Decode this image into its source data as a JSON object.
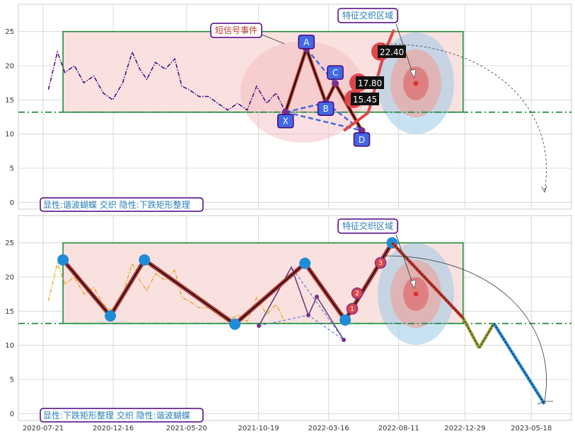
{
  "colors": {
    "grid": "#d0d0d0",
    "rect_fill": "#f9e1df",
    "rect_stroke": "#1e8c3a",
    "support": "#1e8c3a",
    "price_top": "#4b0082",
    "price_bottom": "#e8a317",
    "xabcd_pt": "#4169e1",
    "zigzag": "#b83b3b",
    "zigzag_dot": "#1f8dd6",
    "callout_edge": "#4b0082"
  },
  "chart_data": [
    {
      "type": "line",
      "panel": "top",
      "xlim": [
        "2020-07-21",
        "2023-07-15"
      ],
      "ylim": [
        -1,
        29
      ],
      "yticks": [
        0,
        5,
        10,
        15,
        20,
        25
      ],
      "grid": true,
      "series": [
        {
          "style": "dash-dot",
          "x": [
            "2020-08-01",
            "2020-08-20",
            "2020-09-05",
            "2020-09-25",
            "2020-10-15",
            "2020-11-05",
            "2020-11-25",
            "2020-12-15",
            "2021-01-05",
            "2021-01-25",
            "2021-02-10",
            "2021-02-25",
            "2021-03-15",
            "2021-04-05",
            "2021-04-25",
            "2021-05-10",
            "2021-05-25",
            "2021-06-15",
            "2021-07-05",
            "2021-07-25",
            "2021-08-15",
            "2021-09-05",
            "2021-09-25",
            "2021-10-15",
            "2021-11-05",
            "2021-11-25",
            "2021-12-15"
          ],
          "y": [
            16.5,
            22,
            19,
            20,
            17.5,
            18.5,
            16,
            15,
            17.5,
            22,
            19.5,
            18,
            20.5,
            19.5,
            21,
            17,
            16.5,
            15.5,
            15.5,
            14.5,
            13.5,
            14.5,
            13.5,
            17,
            14.5,
            16,
            13.2
          ]
        }
      ],
      "patterns": {
        "xabcd": [
          {
            "label": "X",
            "x": "2021-12-15",
            "y": 13.2
          },
          {
            "label": "A",
            "x": "2022-01-28",
            "y": 22.5
          },
          {
            "label": "B",
            "x": "2022-03-10",
            "y": 14.6
          },
          {
            "label": "C",
            "x": "2022-03-30",
            "y": 17.4
          },
          {
            "label": "D",
            "x": "2022-05-25",
            "y": 10.5
          }
        ],
        "prices": [
          "15.45",
          "17.80",
          "22.40"
        ],
        "rect": {
          "x0": "2020-09-01",
          "x1": "2022-12-25",
          "y0": 13.2,
          "y1": 25
        },
        "support_y": 13.2
      },
      "annotations": {
        "signal_event": "短信号事件",
        "feature_zone": "特征交织区域"
      },
      "caption": "显性:谐波蝴蝶 交织 隐性:下跌矩形整理"
    },
    {
      "type": "line",
      "panel": "bottom",
      "xlim": [
        "2020-07-21",
        "2023-07-15"
      ],
      "ylim": [
        -1,
        29
      ],
      "yticks": [
        0,
        5,
        10,
        15,
        20,
        25
      ],
      "xticks": [
        "2020-07-21",
        "2020-12-16",
        "2021-05-20",
        "2021-10-19",
        "2022-03-16",
        "2022-08-11",
        "2022-12-29",
        "2023-05-18"
      ],
      "grid": true,
      "series": [
        {
          "style": "dash-dot",
          "x": [
            "2020-08-01",
            "2020-08-20",
            "2020-09-05",
            "2020-09-25",
            "2020-10-15",
            "2020-11-05",
            "2020-11-25",
            "2020-12-15",
            "2021-01-05",
            "2021-01-25",
            "2021-02-10",
            "2021-02-25",
            "2021-03-15",
            "2021-04-05",
            "2021-04-25",
            "2021-05-10",
            "2021-05-25",
            "2021-06-15",
            "2021-07-05",
            "2021-07-25",
            "2021-08-15",
            "2021-09-05",
            "2021-09-25",
            "2021-10-15",
            "2021-11-05",
            "2021-11-25",
            "2021-12-15"
          ],
          "y": [
            16.5,
            22,
            19,
            20,
            17.5,
            18.5,
            16,
            15,
            17.5,
            22,
            19.5,
            18,
            20.5,
            19.5,
            21,
            17,
            16.5,
            15.5,
            15.5,
            14.5,
            13.5,
            14.5,
            13.5,
            17,
            14.5,
            16,
            13.2
          ]
        }
      ],
      "patterns": {
        "zigzag": [
          {
            "x": "2020-09-01",
            "y": 22.5
          },
          {
            "x": "2020-12-10",
            "y": 14.3
          },
          {
            "x": "2021-02-20",
            "y": 22.5
          },
          {
            "x": "2021-08-30",
            "y": 13.1
          },
          {
            "x": "2022-01-25",
            "y": 22.0
          },
          {
            "x": "2022-04-20",
            "y": 13.7
          },
          {
            "x": "2022-07-28",
            "y": 25.0
          }
        ],
        "forecast": [
          {
            "x": "2022-07-28",
            "y": 25.0
          },
          {
            "x": "2022-12-25",
            "y": 14.0
          },
          {
            "x": "2023-01-28",
            "y": 9.6
          },
          {
            "x": "2023-02-28",
            "y": 13.2
          },
          {
            "x": "2023-06-15",
            "y": 1.4
          }
        ],
        "numbered_points": [
          "1",
          "2",
          "3"
        ],
        "rect": {
          "x0": "2020-09-01",
          "x1": "2022-12-25",
          "y0": 13.2,
          "y1": 25
        },
        "support_y": 13.2
      },
      "annotations": {
        "feature_zone": "特征交织区域"
      },
      "caption": "显性:下跌矩形整理 交织 隐性:谐波蝴蝶"
    }
  ]
}
